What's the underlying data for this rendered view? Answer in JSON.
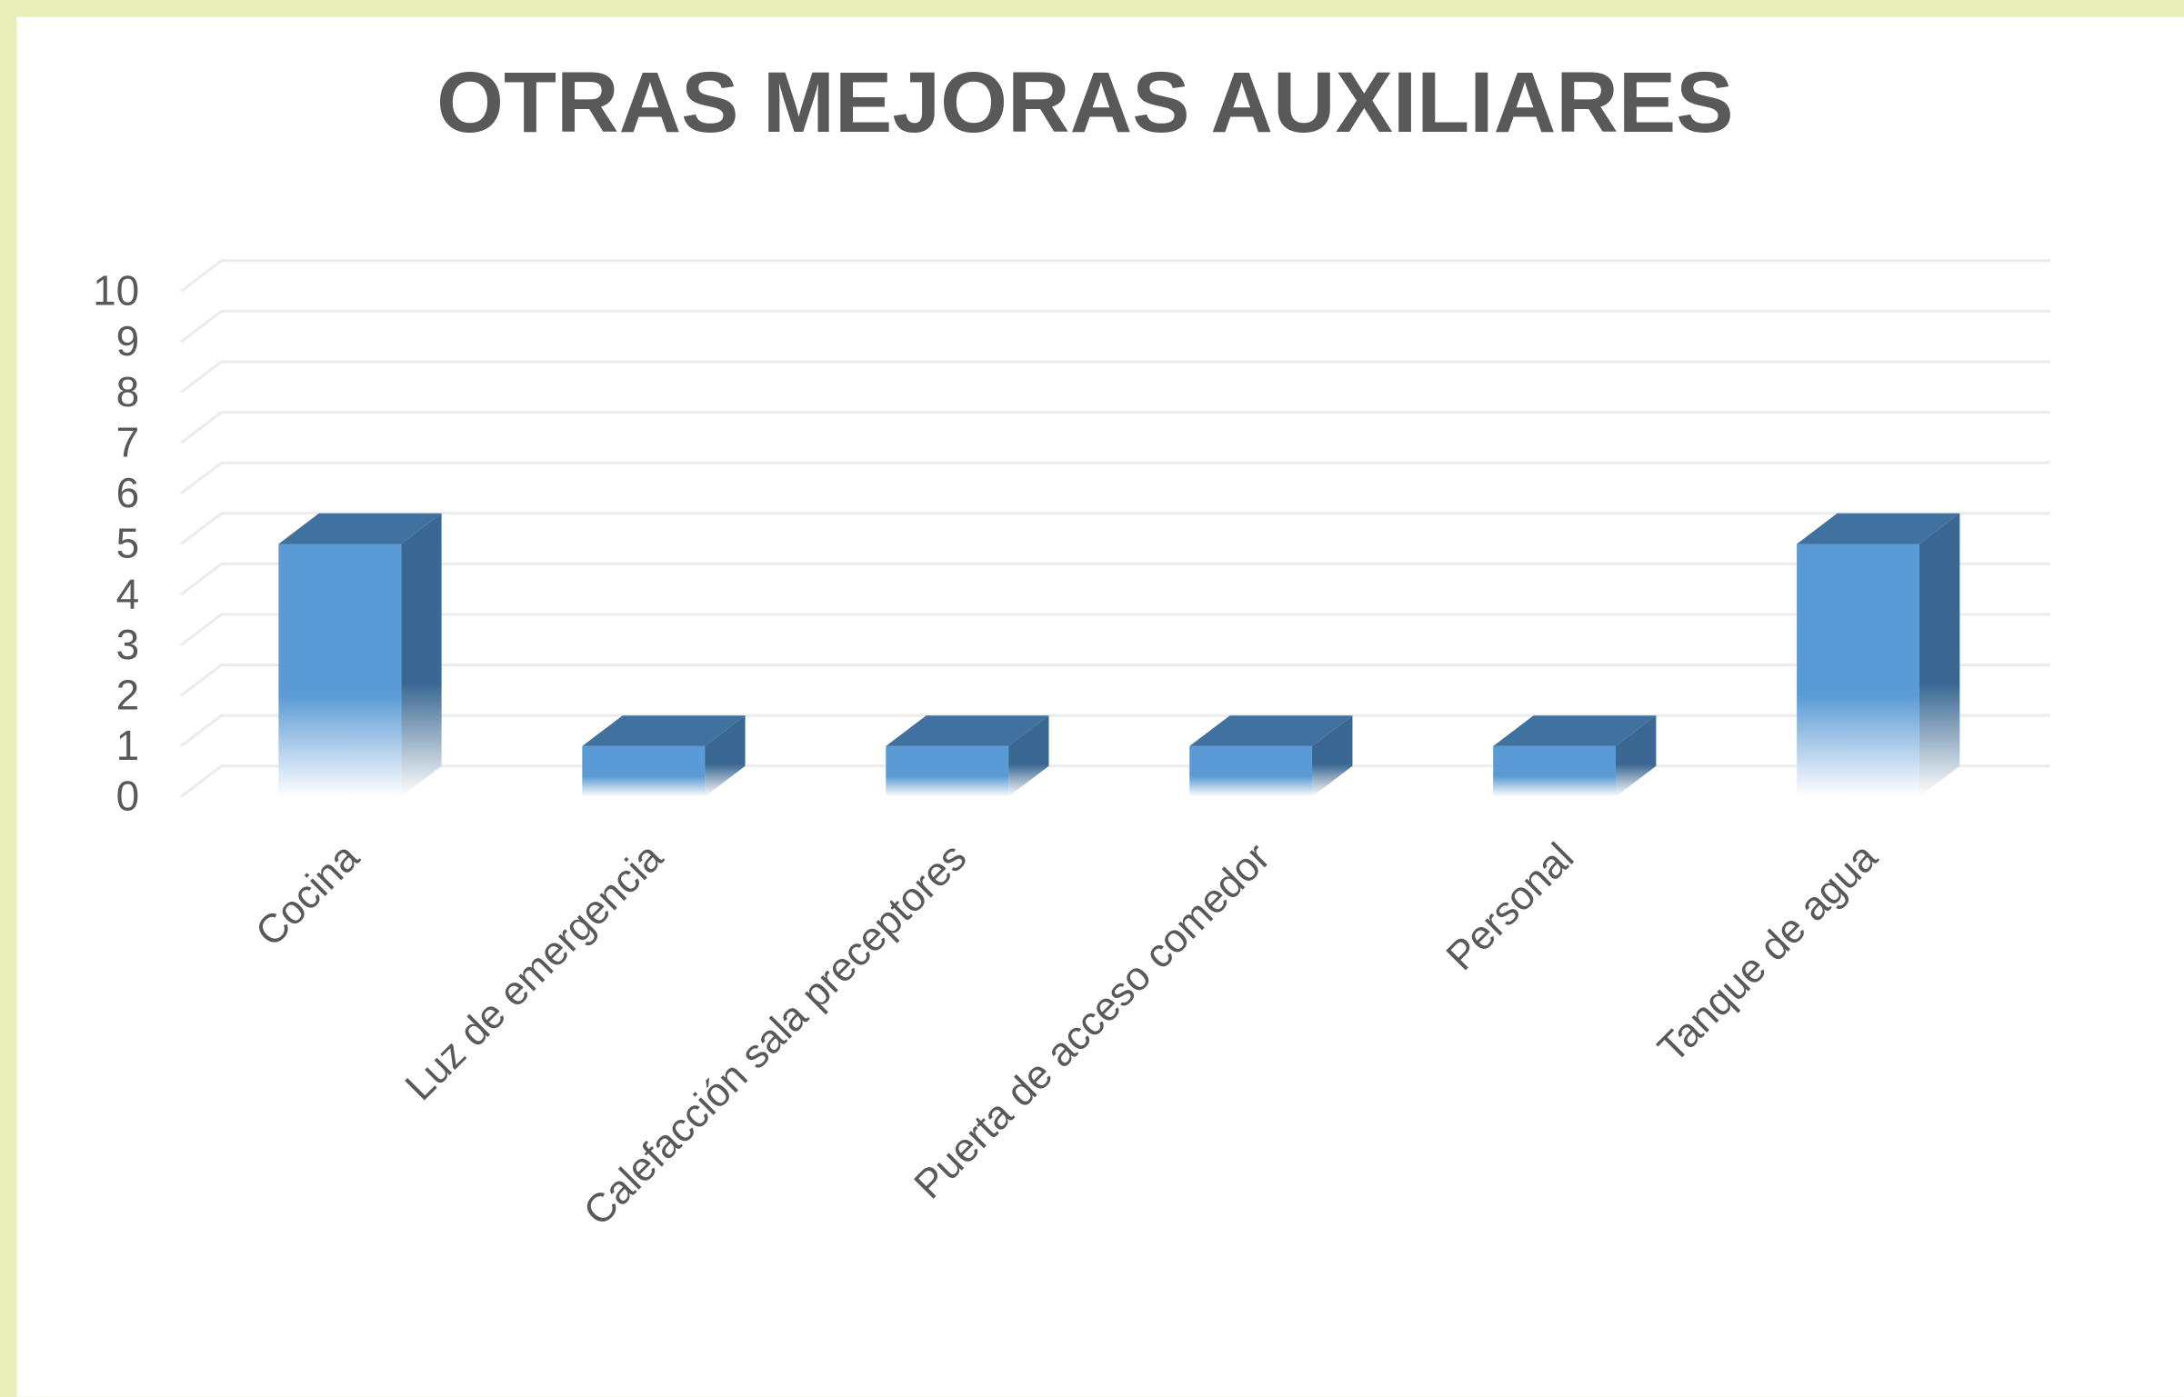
{
  "chart_data": {
    "type": "bar3d",
    "title": "OTRAS MEJORAS AUXILIARES",
    "categories": [
      "Cocina",
      "Luz de emergencia",
      "Calefacción sala preceptores",
      "Puerta de acceso comedor",
      "Personal",
      "Tanque de agua"
    ],
    "values": [
      5,
      1,
      1,
      1,
      1,
      5
    ],
    "color": "#5b9bd5",
    "ylim": [
      0,
      10
    ],
    "yticks": [
      0,
      1,
      2,
      3,
      4,
      5,
      6,
      7,
      8,
      9,
      10
    ],
    "grid": true
  }
}
